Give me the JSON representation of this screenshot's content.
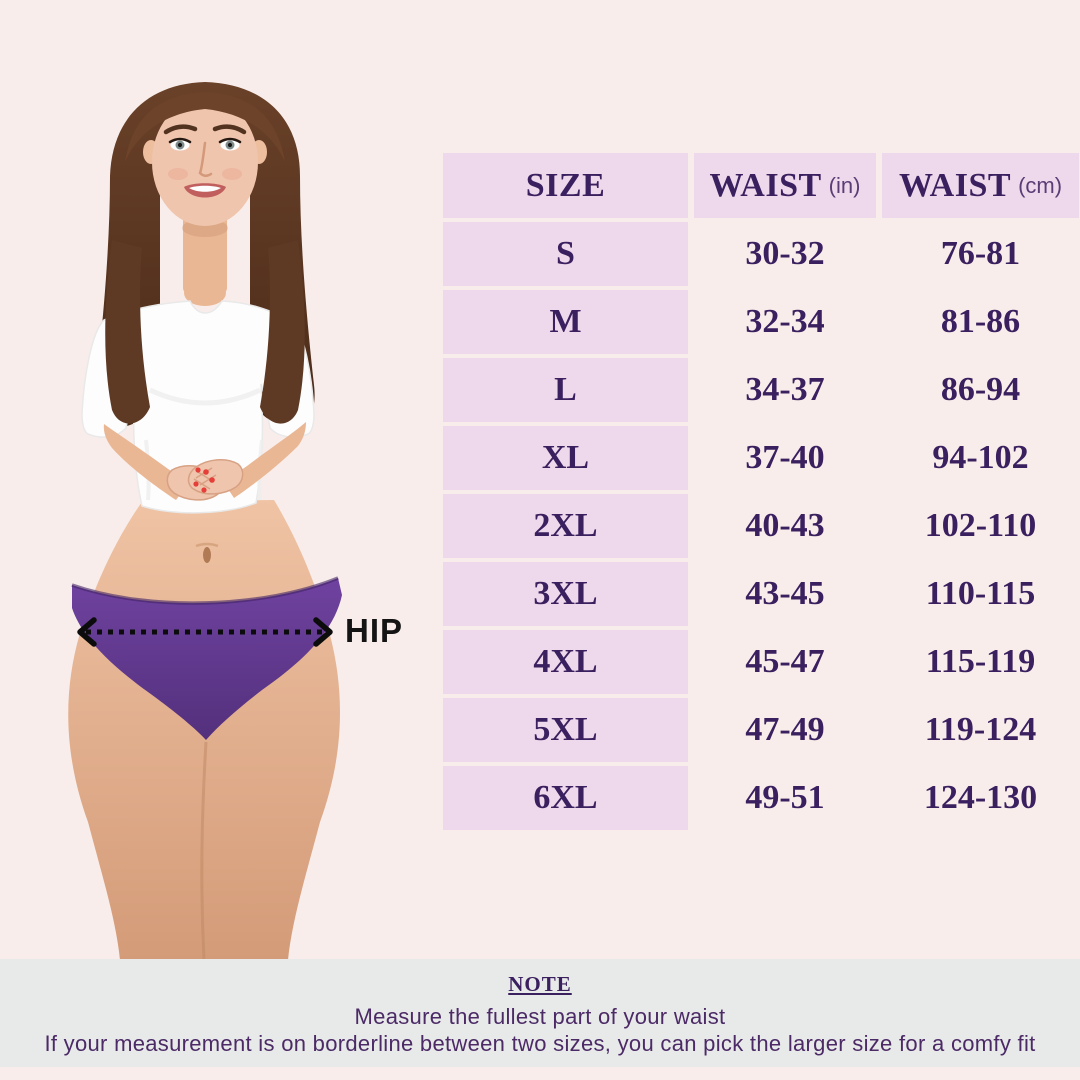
{
  "hip_annotation": {
    "label": "HIP"
  },
  "size_table": {
    "headers": {
      "size": "SIZE",
      "waist_in_label": "WAIST",
      "waist_in_unit": "(in)",
      "waist_cm_label": "WAIST",
      "waist_cm_unit": "(cm)"
    },
    "rows": [
      {
        "size": "S",
        "waist_in": "30-32",
        "waist_cm": "76-81"
      },
      {
        "size": "M",
        "waist_in": "32-34",
        "waist_cm": "81-86"
      },
      {
        "size": "L",
        "waist_in": "34-37",
        "waist_cm": "86-94"
      },
      {
        "size": "XL",
        "waist_in": "37-40",
        "waist_cm": "94-102"
      },
      {
        "size": "2XL",
        "waist_in": "40-43",
        "waist_cm": "102-110"
      },
      {
        "size": "3XL",
        "waist_in": "43-45",
        "waist_cm": "110-115"
      },
      {
        "size": "4XL",
        "waist_in": "45-47",
        "waist_cm": "115-119"
      },
      {
        "size": "5XL",
        "waist_in": "47-49",
        "waist_cm": "119-124"
      },
      {
        "size": "6XL",
        "waist_in": "49-51",
        "waist_cm": "124-130"
      }
    ]
  },
  "note": {
    "title": "NOTE",
    "lines": [
      "Measure the fullest part of your waist",
      "If your measurement is on borderline between two sizes, you can pick the larger size for a comfy fit"
    ]
  },
  "colors": {
    "page_bg": "#f8edea",
    "cell_lavender": "#eed9ec",
    "table_text_purple": "#3b2060",
    "unit_text_purple": "#5b3d76",
    "note_bg": "#e8eae9",
    "note_text": "#4b2a66",
    "hip_label_black": "#141414",
    "panty_purple": "#67399b",
    "tee_white": "#fdfdfd",
    "skin": "#efc3a4",
    "hair_brown": "#5e3a25",
    "nail_red": "#e63e38"
  }
}
